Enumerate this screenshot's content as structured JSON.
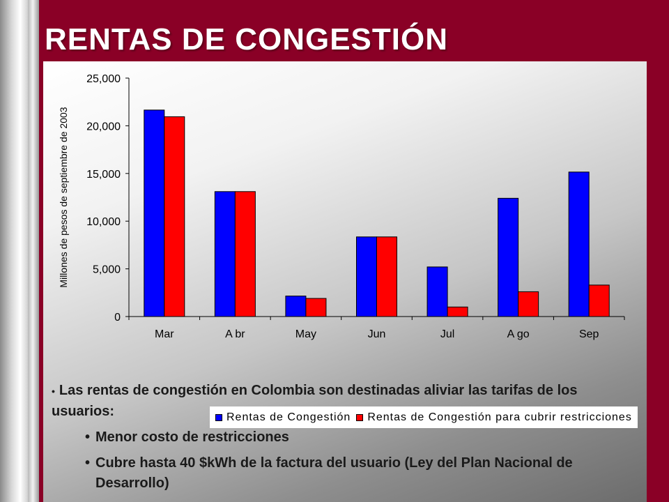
{
  "title": "RENTAS DE CONGESTIÓN",
  "colors": {
    "background": "#8a0026",
    "series1": "#0000ff",
    "series2": "#ff0000"
  },
  "chart_data": {
    "type": "bar",
    "categories": [
      "Mar",
      "Abr",
      "May",
      "Jun",
      "Jul",
      "Ago",
      "Sep"
    ],
    "category_labels": [
      "Mar",
      "A br",
      "May",
      "Jun",
      "Jul",
      "A go",
      "Sep"
    ],
    "series": [
      {
        "name": "Rentas de Congestión",
        "color": "#0000ff",
        "values": [
          21650,
          13100,
          2150,
          8350,
          5200,
          12400,
          15150
        ]
      },
      {
        "name": "Rentas de Congestión para cubrir restricciones",
        "color": "#ff0000",
        "values": [
          20950,
          13100,
          1900,
          8350,
          1000,
          2600,
          3300
        ]
      }
    ],
    "ylabel": "Millones de pesos de septiembre de 2003",
    "ylim": [
      0,
      25000
    ],
    "yticks": [
      0,
      5000,
      10000,
      15000,
      20000,
      25000
    ],
    "ytick_labels": [
      "0",
      "5,000",
      "10,000",
      "15,000",
      "20,000",
      "25,000"
    ],
    "legend_position": "bottom",
    "legend_labels": [
      "Rentas de Congestión",
      "Rentas de Congestión para cubrir restricciones"
    ],
    "grid": false
  },
  "bullets": {
    "main": "Las rentas de congestión en Colombia son destinadas aliviar las tarifas de los usuarios:",
    "sub": [
      "Menor costo de restricciones",
      "Cubre hasta 40 $kWh de la factura del usuario (Ley del Plan Nacional de Desarrollo)"
    ]
  }
}
